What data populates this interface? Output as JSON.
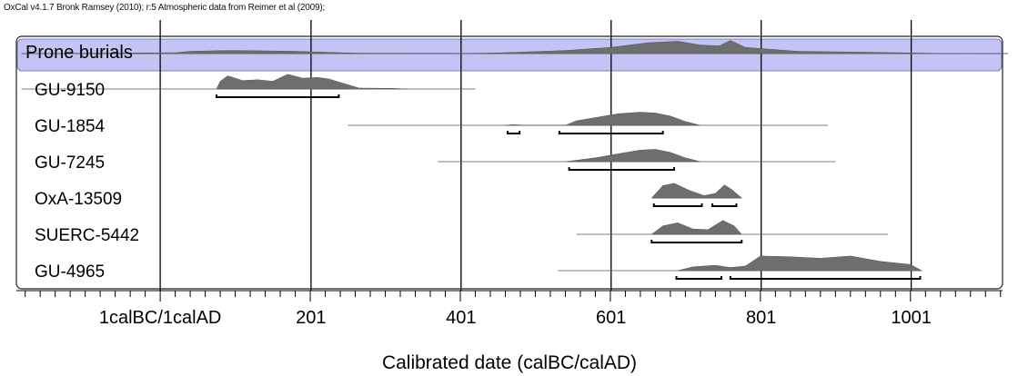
{
  "header": {
    "text": "OxCal v4.1.7 Bronk Ramsey (2010); r:5 Atmospheric data from Reimer et al (2009);"
  },
  "chart_data": {
    "type": "oxcal-multiplot",
    "xlabel": "Calibrated date (calBC/calAD)",
    "xlim": [
      -199,
      1130
    ],
    "ticks": [
      {
        "value": 0,
        "label": "1calBC/1calAD"
      },
      {
        "value": 201,
        "label": "201"
      },
      {
        "value": 401,
        "label": "401"
      },
      {
        "value": 601,
        "label": "601"
      },
      {
        "value": 801,
        "label": "801"
      },
      {
        "value": 1001,
        "label": "1001"
      }
    ],
    "minor_tick_step": 20,
    "phase": {
      "name": "Prone burials",
      "range": [
        -185,
        1130
      ],
      "highlight_color": "#c4c4f4",
      "distribution": [
        [
          -185,
          0
        ],
        [
          20,
          0.05
        ],
        [
          40,
          0.15
        ],
        [
          90,
          0.2
        ],
        [
          130,
          0.18
        ],
        [
          180,
          0.15
        ],
        [
          260,
          0.03
        ],
        [
          420,
          0.02
        ],
        [
          460,
          0.06
        ],
        [
          540,
          0.2
        ],
        [
          600,
          0.4
        ],
        [
          650,
          0.7
        ],
        [
          690,
          0.8
        ],
        [
          720,
          0.55
        ],
        [
          745,
          0.5
        ],
        [
          760,
          0.85
        ],
        [
          780,
          0.4
        ],
        [
          850,
          0.15
        ],
        [
          950,
          0.08
        ],
        [
          1030,
          0.02
        ],
        [
          1130,
          0
        ]
      ]
    },
    "samples": [
      {
        "name": "GU-9150",
        "range": [
          -185,
          420
        ],
        "distribution": [
          [
            75,
            0
          ],
          [
            80,
            0.5
          ],
          [
            90,
            0.85
          ],
          [
            110,
            0.55
          ],
          [
            130,
            0.6
          ],
          [
            150,
            0.5
          ],
          [
            170,
            0.95
          ],
          [
            190,
            0.7
          ],
          [
            210,
            0.75
          ],
          [
            225,
            0.65
          ],
          [
            245,
            0.35
          ],
          [
            265,
            0.06
          ],
          [
            310,
            0.04
          ],
          [
            330,
            0
          ]
        ],
        "hpd": [
          [
            75,
            238
          ]
        ]
      },
      {
        "name": "GU-1854",
        "range": [
          250,
          890
        ],
        "distribution": [
          [
            460,
            0
          ],
          [
            470,
            0.05
          ],
          [
            490,
            0
          ],
          [
            540,
            0
          ],
          [
            555,
            0.3
          ],
          [
            580,
            0.5
          ],
          [
            610,
            0.75
          ],
          [
            640,
            0.85
          ],
          [
            660,
            0.8
          ],
          [
            680,
            0.6
          ],
          [
            700,
            0.25
          ],
          [
            720,
            0
          ]
        ],
        "hpd": [
          [
            463,
            479
          ],
          [
            532,
            670
          ]
        ]
      },
      {
        "name": "GU-7245",
        "range": [
          370,
          900
        ],
        "distribution": [
          [
            540,
            0
          ],
          [
            580,
            0.25
          ],
          [
            615,
            0.55
          ],
          [
            640,
            0.75
          ],
          [
            660,
            0.8
          ],
          [
            680,
            0.6
          ],
          [
            700,
            0.25
          ],
          [
            720,
            0
          ]
        ],
        "hpd": [
          [
            545,
            685
          ]
        ]
      },
      {
        "name": "OxA-13509",
        "range": [
          655,
          775
        ],
        "distribution": [
          [
            655,
            0
          ],
          [
            670,
            0.8
          ],
          [
            685,
            0.95
          ],
          [
            705,
            0.5
          ],
          [
            725,
            0.15
          ],
          [
            740,
            0.3
          ],
          [
            752,
            0.85
          ],
          [
            762,
            0.55
          ],
          [
            775,
            0
          ]
        ],
        "hpd": [
          [
            658,
            722
          ],
          [
            736,
            768
          ]
        ]
      },
      {
        "name": "SUERC-5442",
        "range": [
          555,
          970
        ],
        "distribution": [
          [
            655,
            0
          ],
          [
            670,
            0.55
          ],
          [
            690,
            0.75
          ],
          [
            710,
            0.35
          ],
          [
            730,
            0.3
          ],
          [
            750,
            0.9
          ],
          [
            765,
            0.55
          ],
          [
            775,
            0
          ]
        ],
        "hpd": [
          [
            655,
            775
          ]
        ]
      },
      {
        "name": "GU-4965",
        "range": [
          530,
          1015
        ],
        "distribution": [
          [
            690,
            0
          ],
          [
            710,
            0.25
          ],
          [
            740,
            0.35
          ],
          [
            760,
            0.2
          ],
          [
            780,
            0.3
          ],
          [
            800,
            0.95
          ],
          [
            840,
            0.9
          ],
          [
            880,
            0.8
          ],
          [
            920,
            0.95
          ],
          [
            960,
            0.6
          ],
          [
            1000,
            0.4
          ],
          [
            1015,
            0
          ]
        ],
        "hpd": [
          [
            688,
            748
          ],
          [
            760,
            1013
          ]
        ]
      }
    ]
  }
}
